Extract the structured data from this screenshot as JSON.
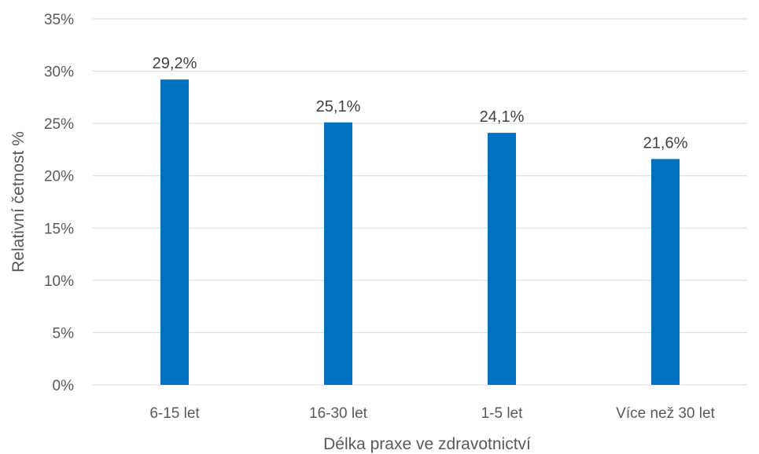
{
  "chart_data": {
    "type": "bar",
    "categories": [
      "6-15 let",
      "16-30 let",
      "1-5 let",
      "Více než 30 let"
    ],
    "values": [
      29.2,
      25.1,
      24.1,
      21.6
    ],
    "data_labels": [
      "29,2%",
      "25,1%",
      "24,1%",
      "21,6%"
    ],
    "title": "",
    "xlabel": "Délka praxe ve zdravotnictví",
    "ylabel": "Relativní četnost %",
    "ylim": [
      0,
      35
    ],
    "y_ticks": [
      0,
      5,
      10,
      15,
      20,
      25,
      30,
      35
    ],
    "y_tick_labels": [
      "0%",
      "5%",
      "10%",
      "15%",
      "20%",
      "25%",
      "30%",
      "35%"
    ],
    "grid": "horizontal",
    "legend": "none",
    "bar_color": "#0070C0"
  }
}
